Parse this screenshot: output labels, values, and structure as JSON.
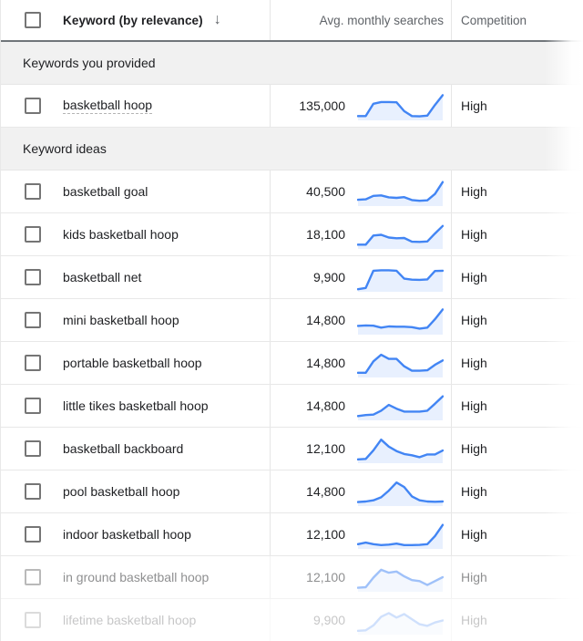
{
  "header": {
    "keyword_label": "Keyword (by relevance)",
    "sort_icon_glyph": "↓",
    "searches_label": "Avg. monthly searches",
    "competition_label": "Competition"
  },
  "colors": {
    "spark_line": "#4285f4",
    "spark_fill": "#e8f0fe",
    "section_bg": "#f1f1f1",
    "header_border": "#70757a"
  },
  "groups": [
    {
      "label": "Keywords you provided",
      "rows": [
        {
          "keyword": "basketball hoop",
          "avg_monthly_searches": "135,000",
          "competition": "High",
          "provided": true,
          "fade_opacity": 1,
          "trend": [
            10,
            10,
            60,
            67,
            67,
            66,
            30,
            10,
            9,
            12,
            55,
            95
          ]
        }
      ]
    },
    {
      "label": "Keyword ideas",
      "rows": [
        {
          "keyword": "basketball goal",
          "avg_monthly_searches": "40,500",
          "competition": "High",
          "provided": false,
          "fade_opacity": 1,
          "trend": [
            18,
            20,
            34,
            36,
            28,
            26,
            29,
            17,
            14,
            16,
            42,
            90
          ]
        },
        {
          "keyword": "kids basketball hoop",
          "avg_monthly_searches": "18,100",
          "competition": "High",
          "provided": false,
          "fade_opacity": 1,
          "trend": [
            10,
            10,
            47,
            50,
            39,
            36,
            37,
            22,
            21,
            23,
            55,
            86
          ]
        },
        {
          "keyword": "basketball net",
          "avg_monthly_searches": "9,900",
          "competition": "High",
          "provided": false,
          "fade_opacity": 1,
          "trend": [
            3,
            8,
            78,
            80,
            80,
            78,
            46,
            42,
            41,
            43,
            77,
            78
          ]
        },
        {
          "keyword": "mini basketball hoop",
          "avg_monthly_searches": "14,800",
          "competition": "High",
          "provided": false,
          "fade_opacity": 1,
          "trend": [
            28,
            30,
            29,
            21,
            26,
            25,
            25,
            23,
            17,
            21,
            55,
            95
          ]
        },
        {
          "keyword": "portable basketball hoop",
          "avg_monthly_searches": "14,800",
          "competition": "High",
          "provided": false,
          "fade_opacity": 1,
          "trend": [
            12,
            12,
            58,
            85,
            68,
            68,
            38,
            20,
            20,
            22,
            44,
            62
          ]
        },
        {
          "keyword": "little tikes basketball hoop",
          "avg_monthly_searches": "14,800",
          "competition": "High",
          "provided": false,
          "fade_opacity": 1,
          "trend": [
            10,
            14,
            16,
            32,
            55,
            40,
            28,
            28,
            28,
            32,
            60,
            90
          ]
        },
        {
          "keyword": "basketball backboard",
          "avg_monthly_searches": "12,100",
          "competition": "High",
          "provided": false,
          "fade_opacity": 1,
          "trend": [
            8,
            10,
            45,
            88,
            60,
            42,
            30,
            25,
            17,
            28,
            28,
            44
          ]
        },
        {
          "keyword": "pool basketball hoop",
          "avg_monthly_searches": "14,800",
          "competition": "High",
          "provided": false,
          "fade_opacity": 1,
          "trend": [
            9,
            11,
            16,
            28,
            55,
            88,
            70,
            32,
            16,
            11,
            10,
            11
          ]
        },
        {
          "keyword": "indoor basketball hoop",
          "avg_monthly_searches": "12,100",
          "competition": "High",
          "provided": false,
          "fade_opacity": 1,
          "trend": [
            12,
            18,
            12,
            8,
            10,
            14,
            8,
            8,
            9,
            12,
            45,
            90
          ]
        },
        {
          "keyword": "in ground basketball hoop",
          "avg_monthly_searches": "12,100",
          "competition": "High",
          "provided": false,
          "fade_opacity": 0.5,
          "trend": [
            9,
            11,
            50,
            82,
            70,
            75,
            55,
            40,
            36,
            20,
            36,
            52
          ]
        },
        {
          "keyword": "lifetime basketball hoop",
          "avg_monthly_searches": "9,900",
          "competition": "High",
          "provided": false,
          "fade_opacity": 0.25,
          "trend": [
            8,
            10,
            30,
            65,
            80,
            62,
            76,
            55,
            35,
            28,
            42,
            50
          ]
        }
      ]
    }
  ]
}
